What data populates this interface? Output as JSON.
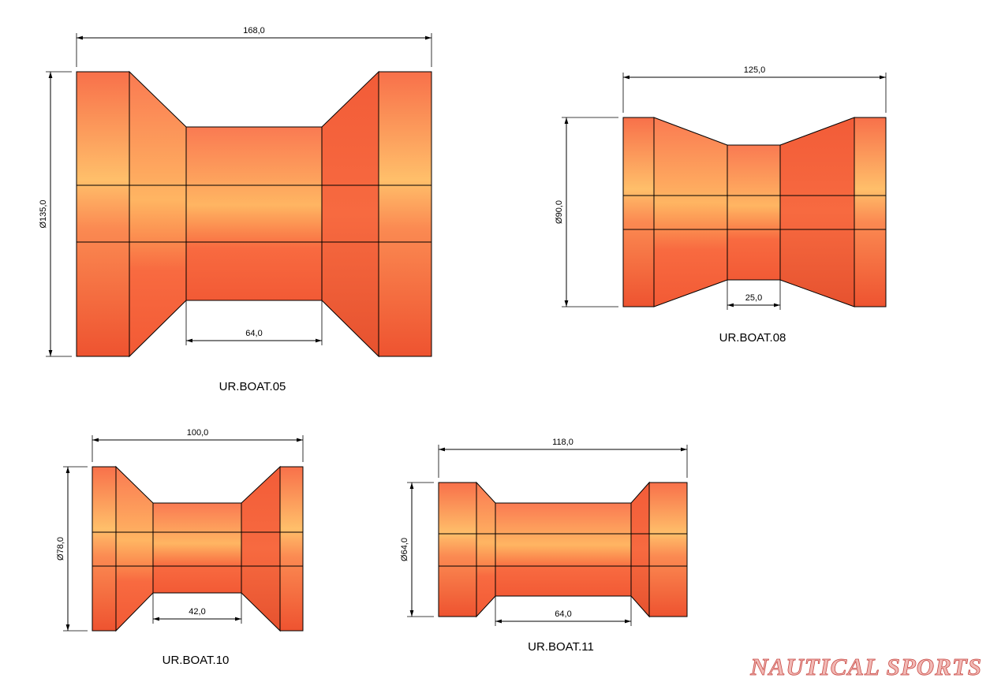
{
  "rollers": [
    {
      "name": "UR.BOAT.05",
      "length": "168,0",
      "diameter": "Ø135,0",
      "inner_length": "64,0"
    },
    {
      "name": "UR.BOAT.08",
      "length": "125,0",
      "diameter": "Ø90,0",
      "inner_length": "25,0"
    },
    {
      "name": "UR.BOAT.10",
      "length": "100,0",
      "diameter": "Ø78,0",
      "inner_length": "42,0"
    },
    {
      "name": "UR.BOAT.11",
      "length": "118,0",
      "diameter": "Ø64,0",
      "inner_length": "64,0"
    }
  ],
  "watermark": "NAUTICAL SPORTS"
}
